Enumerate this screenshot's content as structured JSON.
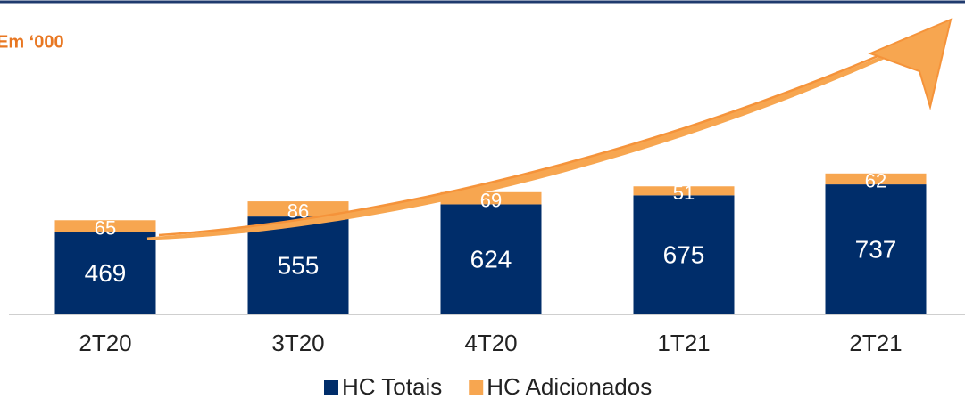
{
  "chart_data": {
    "type": "stacked_bar",
    "title": "Em ‘000",
    "categories": [
      "2T20",
      "3T20",
      "4T20",
      "1T21",
      "2T21"
    ],
    "series": [
      {
        "name": "HC Totais",
        "color": "#002d6a",
        "values": [
          469,
          555,
          624,
          675,
          737
        ]
      },
      {
        "name": "HC Adicionados",
        "color": "#f7a650",
        "values": [
          65,
          86,
          69,
          51,
          62
        ]
      }
    ],
    "ylim": [
      0,
      1000
    ]
  }
}
